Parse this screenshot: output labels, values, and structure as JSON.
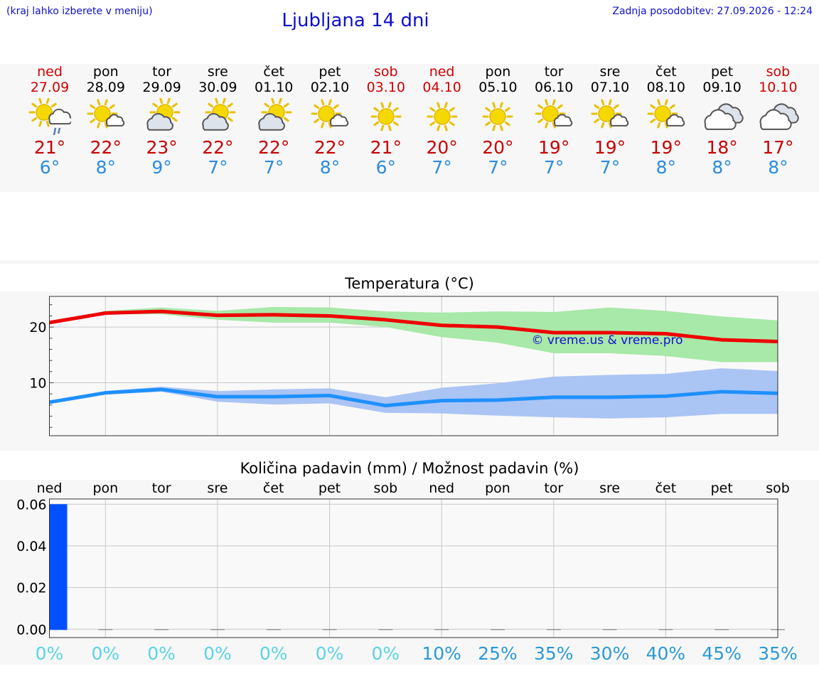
{
  "header": {
    "hint": "(kraj lahko izberete v meniju)",
    "title": "Ljubljana 14 dni",
    "updated": "Zadnja posodobitev: 27.09.2026 - 12:24"
  },
  "colors": {
    "max_line": "#ee0000",
    "min_line": "#1e90ff",
    "max_band": "#a8e8a8",
    "min_band": "#aac4f4",
    "bar": "#0050ff",
    "pct_low": "#5ad4e6",
    "pct_high": "#2a9ad8"
  },
  "days": [
    {
      "name": "ned",
      "date": "27.09",
      "weekend": true,
      "icon": "sun-cloud-rain-icon",
      "tmax": "21°",
      "tmin": "6°"
    },
    {
      "name": "pon",
      "date": "28.09",
      "weekend": false,
      "icon": "sun-small-cloud-icon",
      "tmax": "22°",
      "tmin": "8°"
    },
    {
      "name": "tor",
      "date": "29.09",
      "weekend": false,
      "icon": "sun-cloud-icon",
      "tmax": "23°",
      "tmin": "9°"
    },
    {
      "name": "sre",
      "date": "30.09",
      "weekend": false,
      "icon": "sun-cloud-icon",
      "tmax": "22°",
      "tmin": "7°"
    },
    {
      "name": "čet",
      "date": "01.10",
      "weekend": false,
      "icon": "sun-cloud-icon",
      "tmax": "22°",
      "tmin": "7°"
    },
    {
      "name": "pet",
      "date": "02.10",
      "weekend": false,
      "icon": "sun-small-cloud-icon",
      "tmax": "22°",
      "tmin": "8°"
    },
    {
      "name": "sob",
      "date": "03.10",
      "weekend": true,
      "icon": "sun-icon",
      "tmax": "21°",
      "tmin": "6°"
    },
    {
      "name": "ned",
      "date": "04.10",
      "weekend": true,
      "icon": "sun-icon",
      "tmax": "20°",
      "tmin": "7°"
    },
    {
      "name": "pon",
      "date": "05.10",
      "weekend": false,
      "icon": "sun-icon",
      "tmax": "20°",
      "tmin": "7°"
    },
    {
      "name": "tor",
      "date": "06.10",
      "weekend": false,
      "icon": "sun-small-cloud-icon",
      "tmax": "19°",
      "tmin": "7°"
    },
    {
      "name": "sre",
      "date": "07.10",
      "weekend": false,
      "icon": "sun-small-cloud-icon",
      "tmax": "19°",
      "tmin": "7°"
    },
    {
      "name": "čet",
      "date": "08.10",
      "weekend": false,
      "icon": "sun-small-cloud-icon",
      "tmax": "19°",
      "tmin": "8°"
    },
    {
      "name": "pet",
      "date": "09.10",
      "weekend": false,
      "icon": "cloud-icon",
      "tmax": "18°",
      "tmin": "8°"
    },
    {
      "name": "sob",
      "date": "10.10",
      "weekend": true,
      "icon": "cloud-icon",
      "tmax": "17°",
      "tmin": "8°"
    }
  ],
  "chart_data": [
    {
      "type": "line",
      "title": "Temperatura (°C)",
      "x": [
        "27.09",
        "28.09",
        "29.09",
        "30.09",
        "01.10",
        "02.10",
        "03.10",
        "04.10",
        "05.10",
        "06.10",
        "07.10",
        "08.10",
        "09.10",
        "10.10"
      ],
      "ylim": [
        0.5,
        25.5
      ],
      "yticks": [
        10,
        20
      ],
      "grid": true,
      "watermark": "© vreme.us & vreme.pro",
      "series": [
        {
          "role": "max",
          "values": [
            20.8,
            22.5,
            22.8,
            22.1,
            22.2,
            22.0,
            21.3,
            20.3,
            20.0,
            19.0,
            19.0,
            18.8,
            17.7,
            17.4
          ]
        },
        {
          "role": "max-range",
          "low": [
            20.8,
            22.3,
            22.3,
            21.3,
            20.8,
            20.8,
            20.0,
            18.2,
            17.2,
            15.3,
            15.3,
            14.8,
            13.7,
            13.7
          ],
          "high": [
            20.8,
            22.9,
            23.5,
            22.9,
            23.6,
            23.5,
            22.8,
            22.6,
            22.8,
            22.7,
            23.5,
            22.9,
            21.9,
            21.2
          ]
        },
        {
          "role": "min",
          "values": [
            6.5,
            8.2,
            8.8,
            7.5,
            7.5,
            7.7,
            5.9,
            6.8,
            6.9,
            7.4,
            7.4,
            7.6,
            8.4,
            8.1
          ]
        },
        {
          "role": "min-range",
          "low": [
            6.5,
            7.9,
            8.4,
            6.6,
            6.1,
            6.3,
            4.6,
            4.5,
            4.1,
            3.8,
            3.6,
            3.8,
            4.4,
            4.4
          ],
          "high": [
            6.5,
            8.5,
            9.3,
            8.5,
            8.8,
            9.0,
            7.4,
            9.1,
            9.9,
            11.1,
            11.4,
            11.6,
            12.6,
            12.1
          ]
        }
      ]
    },
    {
      "type": "bar",
      "title": "Količina padavin (mm) / Možnost padavin (%)",
      "categories": [
        "ned",
        "pon",
        "tor",
        "sre",
        "čet",
        "pet",
        "sob",
        "ned",
        "pon",
        "tor",
        "sre",
        "čet",
        "pet",
        "sob"
      ],
      "values": [
        0.06,
        0,
        0,
        0,
        0,
        0,
        0,
        0,
        0,
        0,
        0,
        0,
        0,
        0
      ],
      "ylim": [
        -0.004,
        0.0625
      ],
      "yticks": [
        "0.00",
        "0.02",
        "0.04",
        "0.06"
      ],
      "grid": true,
      "probability_labels": [
        "0%",
        "0%",
        "0%",
        "0%",
        "0%",
        "0%",
        "0%",
        "10%",
        "25%",
        "35%",
        "30%",
        "40%",
        "45%",
        "35%"
      ]
    }
  ]
}
